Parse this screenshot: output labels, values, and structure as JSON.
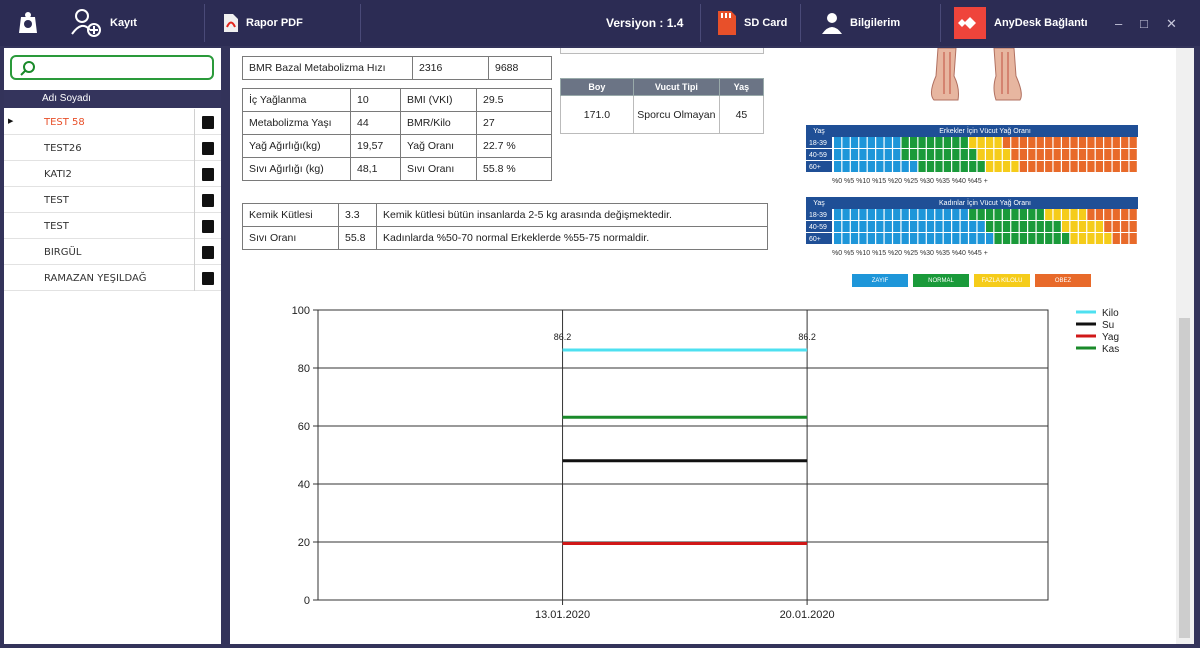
{
  "toolbar": {
    "kayit": "Kayıt",
    "rapor": "Rapor PDF",
    "versiyon": "Versiyon : 1.4",
    "sdcard": "SD Card",
    "bilgilerim": "Bilgilerim",
    "anydesk": "AnyDesk Bağlantı"
  },
  "search": {
    "placeholder": ""
  },
  "list": {
    "header": "Adı Soyadı",
    "items": [
      "TEST 58",
      "TEST26",
      "KATI2",
      "TEST",
      "TEST",
      "BIRGÜL",
      "RAMAZAN YEŞILDAĞ"
    ],
    "selected_color": "#e8502a"
  },
  "metrics": {
    "bmr_label": "BMR Bazal Metabolizma Hızı",
    "bmr_value": "2316",
    "bmr_extra": "9688",
    "ic_label": "İç Yağlanma",
    "ic_value": "10",
    "bmi_label": "BMI (VKI)",
    "bmi_value": "29.5",
    "meta_label": "Metabolizma Yaşı",
    "meta_value": "44",
    "bmrkilo_label": "BMR/Kilo",
    "bmrkilo_value": "27",
    "yag_label": "Yağ Ağırlığı(kg)",
    "yag_value": "19,57",
    "yagorani_label": "Yağ Oranı",
    "yagorani_value": "22.7 %",
    "sivi_label": "Sıvı Ağırlığı (kg)",
    "sivi_value": "48,1",
    "siviorani_label": "Sıvı Oranı",
    "siviorani_value": "55.8 %"
  },
  "kemik": {
    "k_label": "Kemik Kütlesi",
    "k_value": "3.3",
    "k_note": "Kemik kütlesi bütün insanlarda 2-5 kg arasında değişmektedir.",
    "s_label": "Sıvı Oranı",
    "s_value": "55.8",
    "s_note": "Kadınlarda %50-70 normal  Erkeklerde %55-75 normaldir."
  },
  "body_type": {
    "h1": "Boy",
    "h2": "Vucut Tipi",
    "h3": "Yaş",
    "boy": "171.0",
    "tip": "Sporcu Olmayan",
    "yas": "45"
  },
  "scales": {
    "erkek_title": "Erkekler İçin Vücut Yağ Oranı",
    "kadin_title": "Kadınlar İçin Vücut Yağ Oranı",
    "yas": "Yaş",
    "rows": [
      "18-39",
      "40-59",
      "60+"
    ],
    "axis": "%0  %5  %10  %15  %20  %25  %30  %35  %40  %45 +",
    "legend": [
      "ZAYIF",
      "NORMAL",
      "FAZLA KILOLU",
      "OBEZ"
    ],
    "colors": {
      "zayif": "#1e96d9",
      "normal": "#1a9a3a",
      "fazla": "#f5cc1a",
      "obez": "#e86a2a"
    }
  },
  "chart_data": {
    "type": "line",
    "categories": [
      "13.01.2020",
      "20.01.2020"
    ],
    "ylim": [
      0,
      100
    ],
    "yticks": [
      "0",
      "20",
      "40",
      "60",
      "80",
      "100"
    ],
    "series": [
      {
        "name": "Kilo",
        "values": [
          86.2,
          86.2
        ],
        "color": "#4ee0f0",
        "labels": [
          "86.2",
          "86.2"
        ]
      },
      {
        "name": "Su",
        "values": [
          48,
          48
        ],
        "color": "#111111"
      },
      {
        "name": "Yag",
        "values": [
          19.5,
          19.5
        ],
        "color": "#d01818"
      },
      {
        "name": "Kas",
        "values": [
          63,
          63
        ],
        "color": "#1a8a2a"
      }
    ]
  }
}
